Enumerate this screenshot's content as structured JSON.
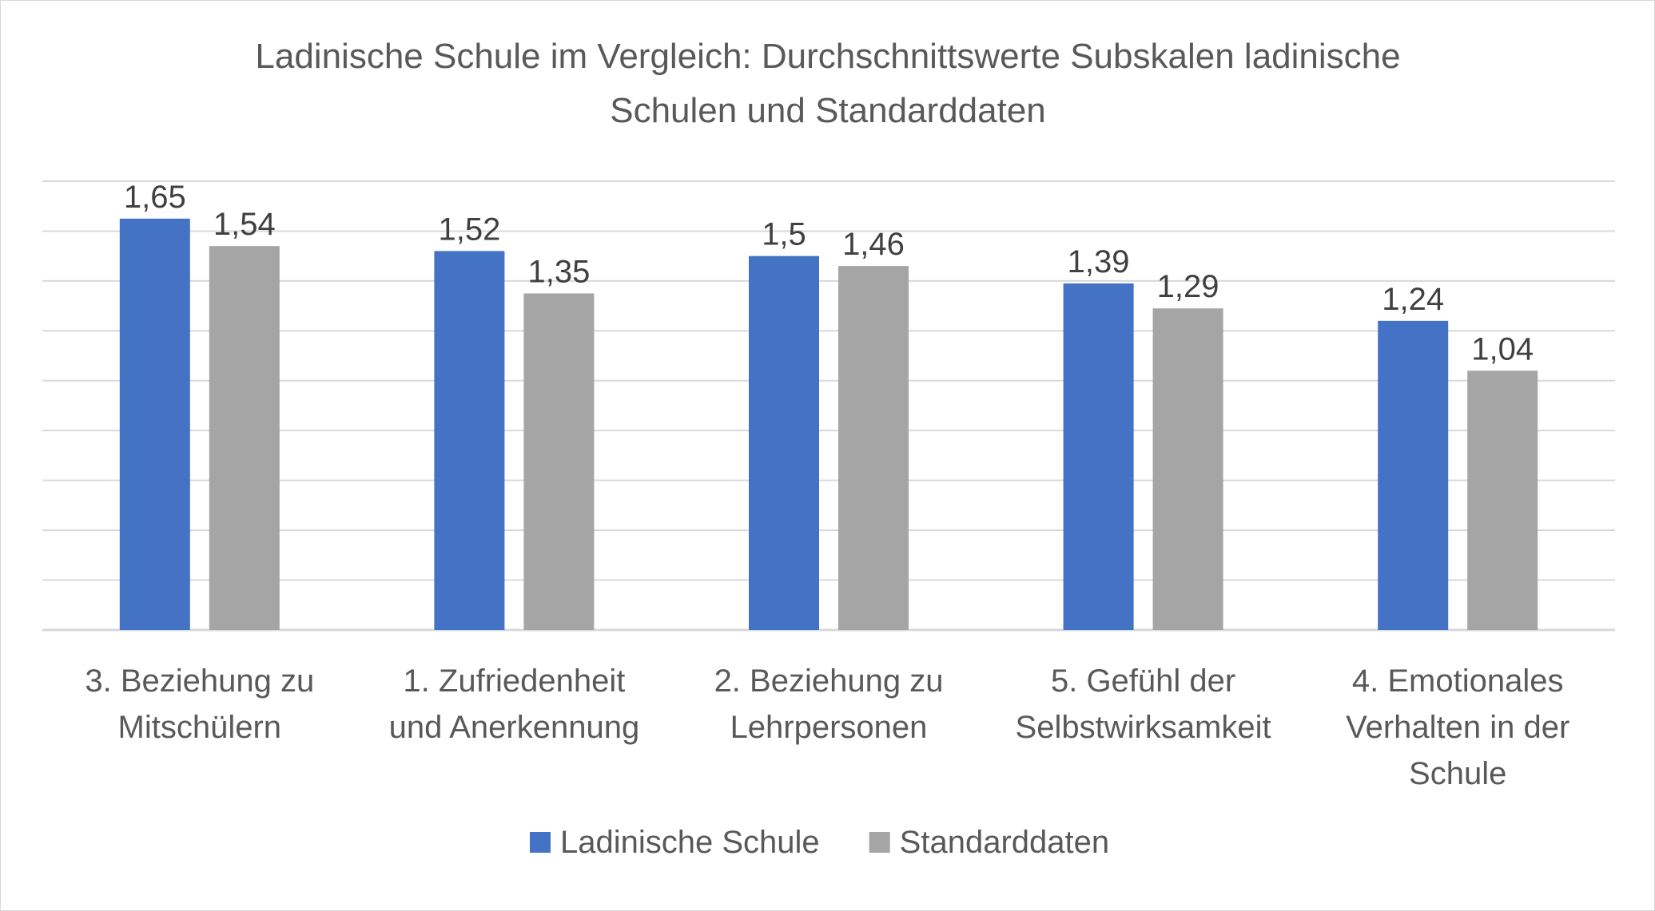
{
  "chart_data": {
    "type": "bar",
    "title_lines": [
      "Ladinische Schule im Vergleich: Durchschnittswerte Subskalen ladinische",
      "Schulen und Standarddaten"
    ],
    "categories": [
      [
        "3. Beziehung zu",
        "Mitschülern"
      ],
      [
        "1. Zufriedenheit",
        "und Anerkennung"
      ],
      [
        "2. Beziehung zu",
        "Lehrpersonen"
      ],
      [
        "5. Gefühl der",
        "Selbstwirksamkeit"
      ],
      [
        "4. Emotionales",
        "Verhalten in der",
        "Schule"
      ]
    ],
    "series": [
      {
        "name": "Ladinische Schule",
        "color": "#4472c4",
        "values": [
          1.65,
          1.52,
          1.5,
          1.39,
          1.24
        ],
        "labels": [
          "1,65",
          "1,52",
          "1,5",
          "1,39",
          "1,24"
        ]
      },
      {
        "name": "Standarddaten",
        "color": "#a5a5a5",
        "values": [
          1.54,
          1.35,
          1.46,
          1.29,
          1.04
        ],
        "labels": [
          "1,54",
          "1,35",
          "1,46",
          "1,29",
          "1,04"
        ]
      }
    ],
    "ylim": [
      0,
      1.8
    ],
    "gridlines": 9,
    "grid": true,
    "legend": "bottom"
  }
}
